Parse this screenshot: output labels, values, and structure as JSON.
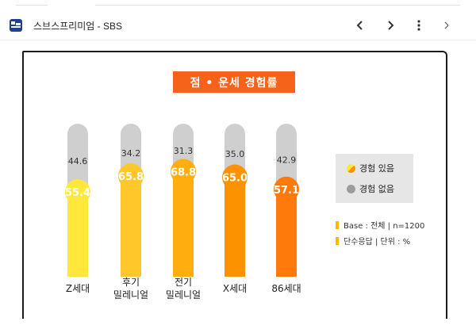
{
  "app": {
    "title": "스브스프리미엄 - SBS",
    "icon": "sbs-premium-app-icon",
    "nav": {
      "back_icon": "chevron-left-icon",
      "forward_icon": "chevron-right-icon",
      "menu_icon": "more-vertical-icon"
    }
  },
  "chart_data": {
    "type": "bar",
    "stacked": true,
    "title": "점 • 운세 경험률",
    "categories": [
      "Z세대",
      "후기\n밀레니얼",
      "전기\n밀레니얼",
      "X세대",
      "86세대"
    ],
    "series": [
      {
        "name": "경험 있음",
        "values": [
          55.4,
          65.8,
          68.8,
          65.0,
          57.1
        ],
        "colors": [
          "#ffe73c",
          "#ffc72a",
          "#ffae0d",
          "#fd9200",
          "#ff7a0a"
        ]
      },
      {
        "name": "경험 없음",
        "values": [
          44.6,
          34.2,
          31.3,
          35.0,
          42.9
        ],
        "color": "#cfcfcf"
      }
    ],
    "value_labels": {
      "yes": [
        "55.4",
        "65.8",
        "68.8",
        "65.0",
        "57.1"
      ],
      "no": [
        "44.6",
        "34.2",
        "31.3",
        "35.0",
        "42.9"
      ]
    },
    "ylim": [
      0,
      100
    ],
    "legend_position": "right"
  },
  "legend": {
    "yes_label": "경험 있음",
    "no_label": "경험 없음",
    "yes_color": "#ffae0d",
    "no_color": "#9c9c9c"
  },
  "notes": {
    "base": "Base : 전체 | n=1200",
    "unit": "단수응답 | 단위 : %"
  }
}
